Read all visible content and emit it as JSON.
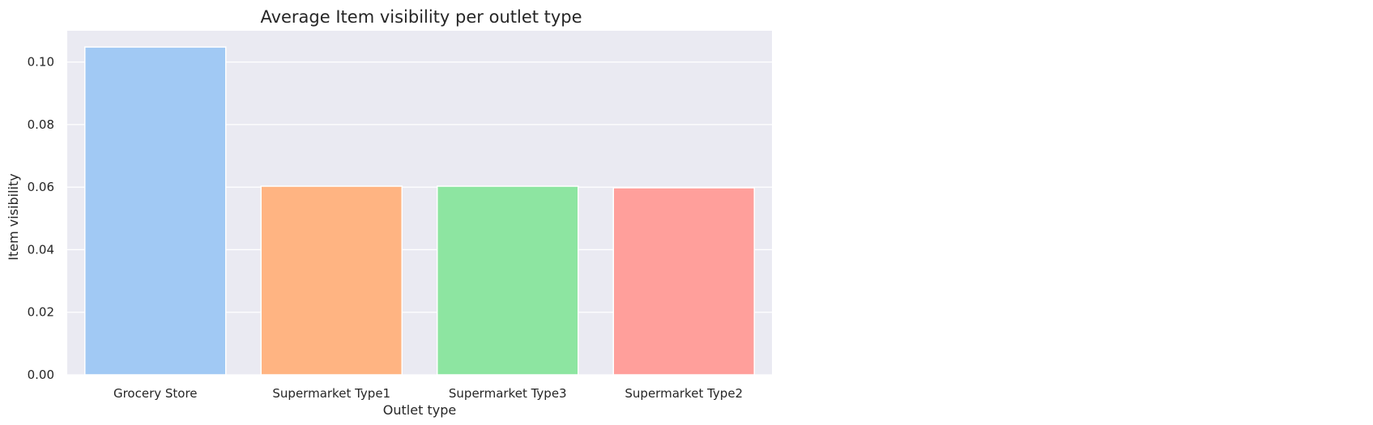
{
  "chart_data": {
    "type": "bar",
    "title": "Average Item visibility per outlet type",
    "xlabel": "Outlet type",
    "ylabel": "Item visibility",
    "categories": [
      "Grocery Store",
      "Supermarket Type1",
      "Supermarket Type3",
      "Supermarket Type2"
    ],
    "values": [
      0.1048,
      0.0603,
      0.0603,
      0.0598
    ],
    "colors": [
      "#a1c9f4",
      "#ffb482",
      "#8de5a1",
      "#ff9f9b"
    ],
    "ylim": [
      0,
      0.11
    ],
    "yticks": [
      "0.00",
      "0.02",
      "0.04",
      "0.06",
      "0.08",
      "0.10"
    ],
    "grid": true,
    "background": "#eaeaf2"
  }
}
